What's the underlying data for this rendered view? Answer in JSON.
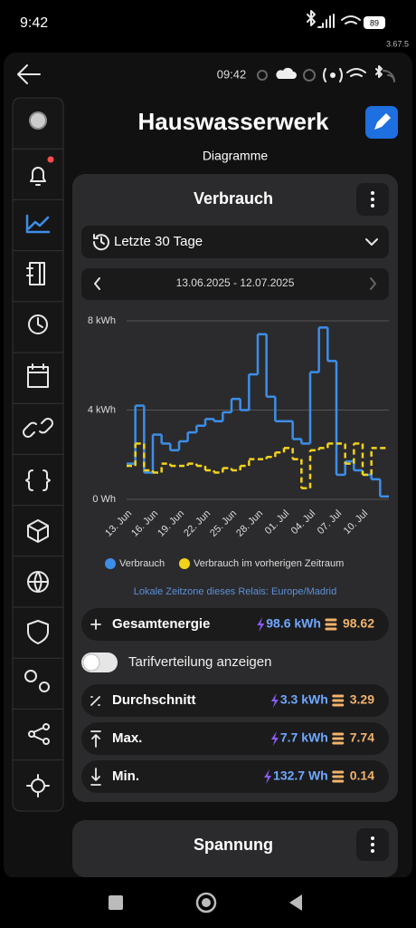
{
  "status_bar": {
    "time": "9:42",
    "battery": "89",
    "version": "3.67.5"
  },
  "app_bar": {
    "time": "09:42"
  },
  "header": {
    "title": "Hauswasserwerk",
    "subtitle": "Diagramme"
  },
  "card": {
    "title": "Verbrauch",
    "range": "Letzte 30 Tage",
    "dates": "13.06.2025 - 12.07.2025",
    "timezone_note": "Lokale Zeitzone dieses Relais: Europe/Madrid",
    "total": {
      "label": "Gesamtenergie",
      "energy": "98.6 kWh",
      "cost": "98.62"
    },
    "toggle": "Tarifverteilung anzeigen",
    "average": {
      "label": "Durchschnitt",
      "energy": "3.3 kWh",
      "cost": "3.29"
    },
    "max": {
      "label": "Max.",
      "energy": "7.7 kWh",
      "cost": "7.74"
    },
    "min": {
      "label": "Min.",
      "energy": "132.7 Wh",
      "cost": "0.14"
    }
  },
  "next_card": {
    "title": "Spannung"
  },
  "chart_data": {
    "type": "step",
    "categories": [
      "13. Jun",
      null,
      null,
      "16. Jun",
      null,
      null,
      "19. Jun",
      null,
      null,
      "22. Jun",
      null,
      null,
      "25. Jun",
      null,
      null,
      "28. Jun",
      null,
      null,
      "01. Jul",
      null,
      null,
      "04. Jul",
      null,
      null,
      "07. Jul",
      null,
      null,
      "10. Jul",
      null,
      null
    ],
    "series": [
      {
        "name": "Verbrauch",
        "color": "#3d8ee8",
        "dash": false,
        "values": [
          1.6,
          4.2,
          1.2,
          2.9,
          2.5,
          2.2,
          2.6,
          3.0,
          3.3,
          3.6,
          3.5,
          3.9,
          4.5,
          4.0,
          5.6,
          7.4,
          4.6,
          3.5,
          3.5,
          2.7,
          2.5,
          5.7,
          7.7,
          6.2,
          1.1,
          1.7,
          1.3,
          1.1,
          0.9,
          0.13
        ]
      },
      {
        "name": "Verbrauch im vorherigen Zeitraum",
        "color": "#f2d31b",
        "dash": true,
        "values": [
          1.5,
          2.5,
          1.3,
          1.2,
          1.6,
          1.5,
          1.5,
          1.6,
          1.5,
          1.3,
          1.2,
          1.4,
          1.3,
          1.5,
          1.8,
          1.8,
          1.9,
          2.1,
          2.3,
          1.8,
          0.5,
          2.2,
          2.3,
          2.5,
          2.5,
          1.6,
          2.5,
          1.1,
          2.3,
          2.3
        ]
      }
    ],
    "ylim": [
      0,
      8
    ],
    "yticks": [
      {
        "value": 0,
        "label": "0 Wh"
      },
      {
        "value": 4,
        "label": "4 kWh"
      },
      {
        "value": 8,
        "label": "8 kWh"
      }
    ],
    "grid": true
  }
}
